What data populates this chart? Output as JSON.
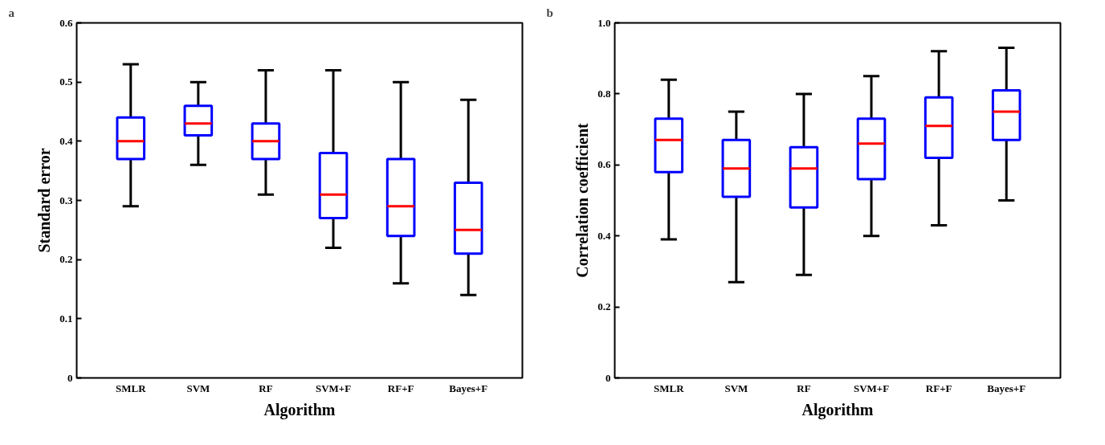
{
  "chart_data": [
    {
      "type": "box",
      "title": "a",
      "xlabel": "Algorithm",
      "ylabel": "Standard error",
      "categories": [
        "SMLR",
        "SVM",
        "RF",
        "SVM+F",
        "RF+F",
        "Bayes+F"
      ],
      "ylim": [
        0,
        0.6
      ],
      "yticks": [
        0,
        0.1,
        0.2,
        0.3,
        0.4,
        0.5,
        0.6
      ],
      "grid": false,
      "series": [
        {
          "color": "#0000ff",
          "boxes": [
            {
              "low": 0.29,
              "q1": 0.37,
              "median": 0.4,
              "q3": 0.44,
              "high": 0.53
            },
            {
              "low": 0.36,
              "q1": 0.41,
              "median": 0.43,
              "q3": 0.46,
              "high": 0.5
            },
            {
              "low": 0.31,
              "q1": 0.37,
              "median": 0.4,
              "q3": 0.43,
              "high": 0.52
            },
            {
              "low": 0.22,
              "q1": 0.27,
              "median": 0.31,
              "q3": 0.38,
              "high": 0.52
            },
            {
              "low": 0.16,
              "q1": 0.24,
              "median": 0.29,
              "q3": 0.37,
              "high": 0.5
            },
            {
              "low": 0.14,
              "q1": 0.21,
              "median": 0.25,
              "q3": 0.33,
              "high": 0.47
            }
          ]
        }
      ]
    },
    {
      "type": "box",
      "title": "b",
      "xlabel": "Algorithm",
      "ylabel": "Correlation coefficient",
      "categories": [
        "SMLR",
        "SVM",
        "RF",
        "SVM+F",
        "RF+F",
        "Bayes+F"
      ],
      "ylim": [
        0,
        1.0
      ],
      "yticks": [
        0,
        0.2,
        0.4,
        0.6,
        0.8,
        {
          "value": 1.0,
          "label": "1.0"
        }
      ],
      "grid": false,
      "series": [
        {
          "color": "#0000ff",
          "boxes": [
            {
              "low": 0.39,
              "q1": 0.58,
              "median": 0.67,
              "q3": 0.73,
              "high": 0.84
            },
            {
              "low": 0.27,
              "q1": 0.51,
              "median": 0.59,
              "q3": 0.67,
              "high": 0.75
            },
            {
              "low": 0.29,
              "q1": 0.48,
              "median": 0.59,
              "q3": 0.65,
              "high": 0.8
            },
            {
              "low": 0.4,
              "q1": 0.56,
              "median": 0.66,
              "q3": 0.73,
              "high": 0.85
            },
            {
              "low": 0.43,
              "q1": 0.62,
              "median": 0.71,
              "q3": 0.79,
              "high": 0.92
            },
            {
              "low": 0.5,
              "q1": 0.67,
              "median": 0.75,
              "q3": 0.81,
              "high": 0.93
            }
          ]
        }
      ]
    }
  ]
}
